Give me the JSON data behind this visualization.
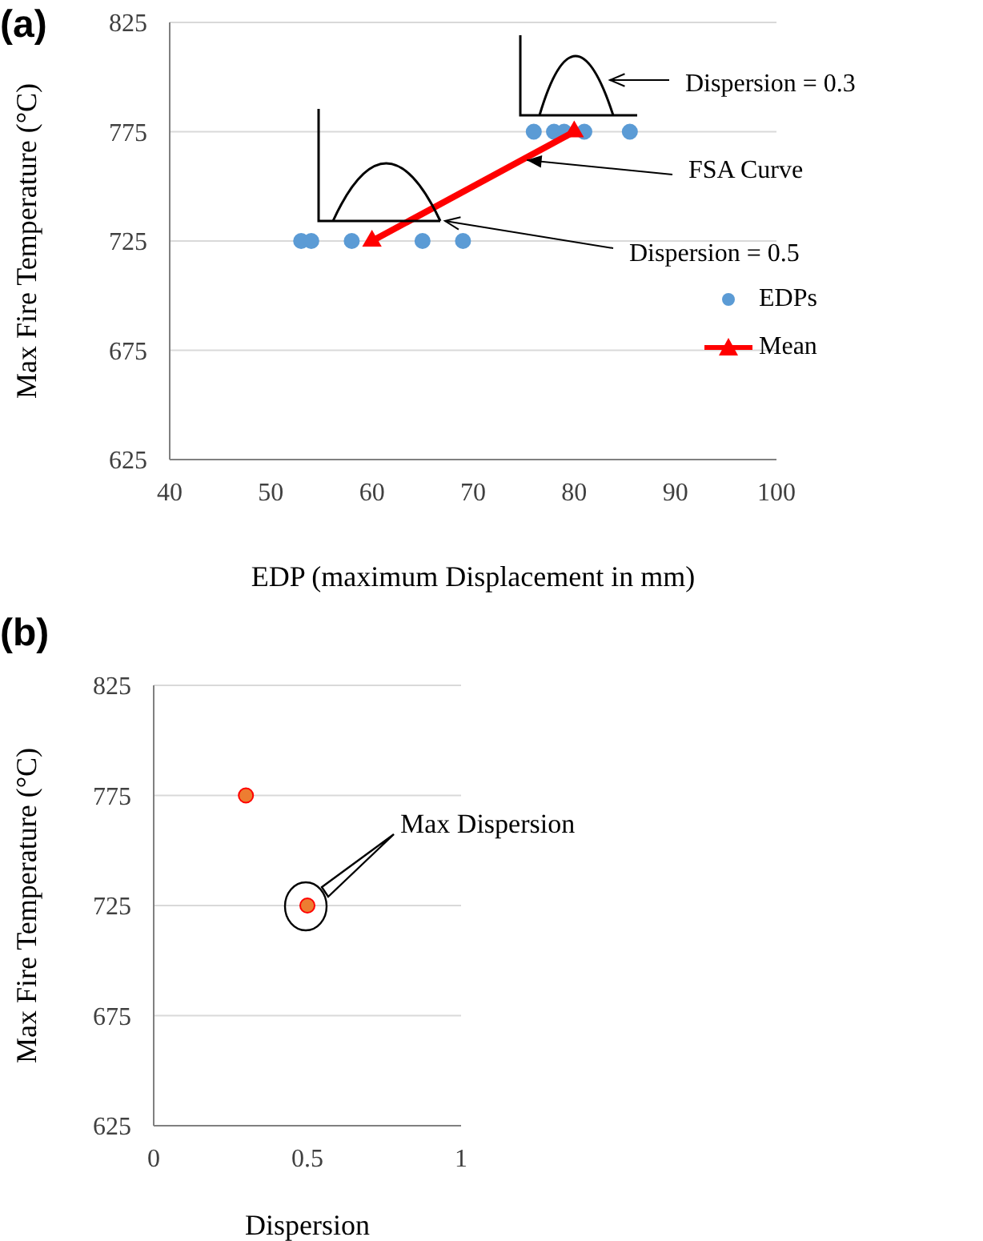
{
  "chart_data": [
    {
      "type": "scatter",
      "title": "(a)",
      "xlabel": "EDP (maximum Displacement in mm)",
      "ylabel": "Max Fire Temperature (°C)",
      "xlim": [
        40,
        100
      ],
      "xticks": [
        40,
        50,
        60,
        70,
        80,
        90,
        100
      ],
      "ylim": [
        625,
        825
      ],
      "yticks": [
        625,
        675,
        725,
        775,
        825
      ],
      "grid": "y",
      "legend": "right",
      "series": [
        {
          "name": "EDPs",
          "marker": "circle",
          "color": "#5b9bd5",
          "x": [
            53,
            54,
            58,
            65,
            69,
            76,
            78,
            79,
            81,
            85.5
          ],
          "values": [
            725,
            725,
            725,
            725,
            725,
            775,
            775,
            775,
            775,
            775
          ]
        },
        {
          "name": "Mean",
          "type": "line",
          "marker": "triangle",
          "color": "#ff0000",
          "x": [
            60,
            80
          ],
          "values": [
            725,
            775
          ]
        }
      ],
      "annotations": [
        "Dispersion = 0.3",
        {
          "text": "FSA Curve",
          "x": 75,
          "y": 762
        },
        "Dispersion = 0.5"
      ]
    },
    {
      "type": "scatter",
      "title": "(b)",
      "xlabel": "Dispersion",
      "ylabel": "Max Fire Temperature (°C)",
      "xlim": [
        0,
        1
      ],
      "xticks": [
        0,
        0.5,
        1
      ],
      "ylim": [
        625,
        825
      ],
      "yticks": [
        625,
        675,
        725,
        775,
        825
      ],
      "grid": "y",
      "series": [
        {
          "marker": "circle",
          "color": "#ed7d31",
          "x": [
            0.3,
            0.5
          ],
          "values": [
            775,
            725
          ]
        }
      ],
      "annotations": [
        "Max Dispersion"
      ]
    }
  ]
}
